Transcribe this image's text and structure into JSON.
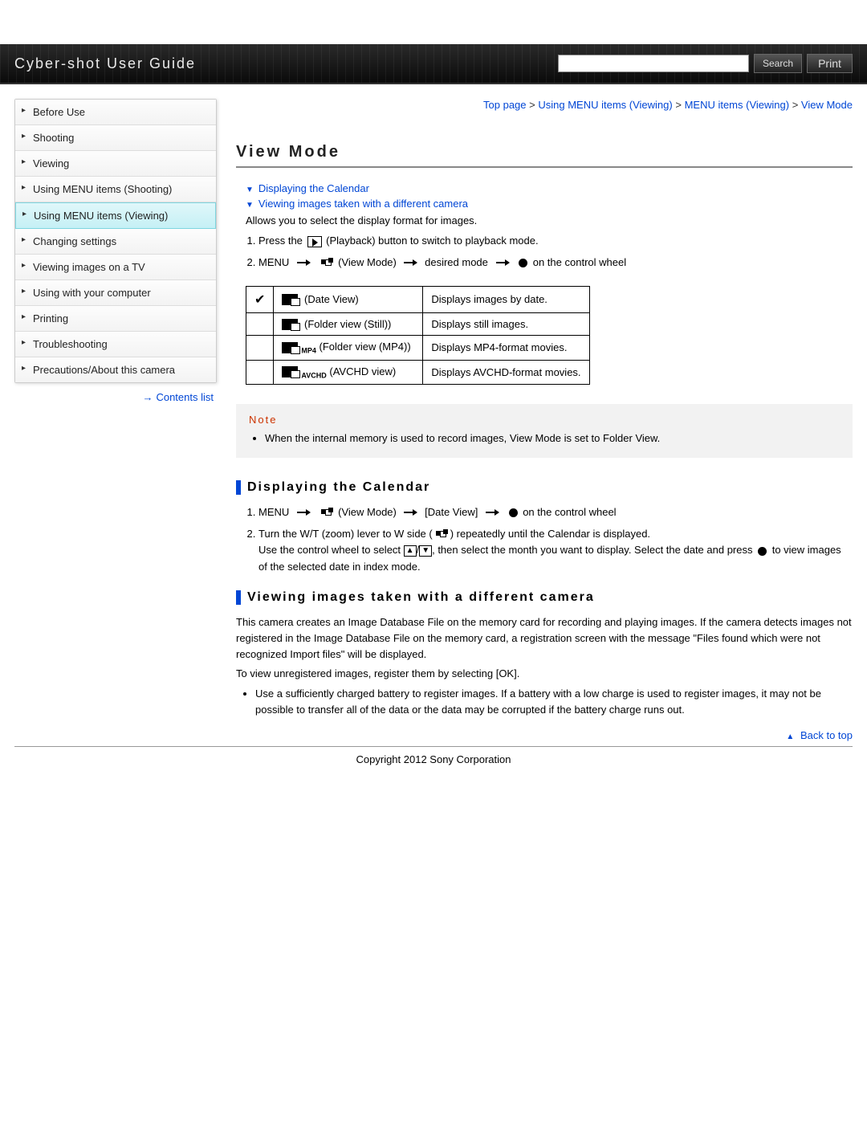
{
  "header": {
    "title": "Cyber-shot User Guide",
    "search_button": "Search",
    "print_button": "Print",
    "search_placeholder": ""
  },
  "colors": {
    "link": "#0046d5",
    "note_title": "#cc3300",
    "section_accent": "#0046d5",
    "active_bg_top": "#e0f7fa",
    "active_bg_bottom": "#c5f0f5"
  },
  "sidebar": {
    "items": [
      {
        "label": "Before Use"
      },
      {
        "label": "Shooting"
      },
      {
        "label": "Viewing"
      },
      {
        "label": "Using MENU items (Shooting)"
      },
      {
        "label": "Using MENU items (Viewing)",
        "active": true
      },
      {
        "label": "Changing settings"
      },
      {
        "label": "Viewing images on a TV"
      },
      {
        "label": "Using with your computer"
      },
      {
        "label": "Printing"
      },
      {
        "label": "Troubleshooting"
      },
      {
        "label": "Precautions/About this camera"
      }
    ],
    "contents_list": "Contents list"
  },
  "breadcrumb": {
    "items": [
      "Top page",
      "Using MENU items (Viewing)",
      "MENU items (Viewing)",
      "View Mode"
    ],
    "sep": " > "
  },
  "page": {
    "title": "View Mode",
    "anchors": [
      "Displaying the Calendar",
      "Viewing images taken with a different camera"
    ],
    "intro": "Allows you to select the display format for images.",
    "steps_intro": {
      "s1_a": "Press the ",
      "s1_b": " (Playback) button to switch to playback mode.",
      "s2_a": "MENU ",
      "s2_b": " (View Mode) ",
      "s2_c": " desired mode ",
      "s2_d": " on the control wheel"
    },
    "table": {
      "rows": [
        {
          "check": "✔",
          "label": " (Date View)",
          "desc": "Displays images by date."
        },
        {
          "check": "",
          "label": " (Folder view (Still))",
          "desc": "Displays still images."
        },
        {
          "check": "",
          "sub": "MP4",
          "label": " (Folder view (MP4))",
          "desc": "Displays MP4-format movies."
        },
        {
          "check": "",
          "sub": "AVCHD",
          "label": " (AVCHD view)",
          "desc": "Displays AVCHD-format movies."
        }
      ]
    },
    "note": {
      "title": "Note",
      "items": [
        "When the internal memory is used to record images, View Mode is set to Folder View."
      ]
    },
    "section_calendar": {
      "title": "Displaying the Calendar",
      "s1_a": "MENU ",
      "s1_b": " (View Mode) ",
      "s1_c": " [Date View] ",
      "s1_d": " on the control wheel",
      "s2_a": "Turn the W/T (zoom) lever to W side (",
      "s2_b": ") repeatedly until the Calendar is displayed.",
      "s2_c": "Use the control wheel to select ",
      "s2_d": ", then select the month you want to display. Select the date and press ",
      "s2_e": " to view images of the selected date in index mode."
    },
    "section_diffcam": {
      "title": "Viewing images taken with a different camera",
      "p1": "This camera creates an Image Database File on the memory card for recording and playing images. If the camera detects images not registered in the Image Database File on the memory card, a registration screen with the message \"Files found which were not recognized Import files\" will be displayed.",
      "p2": "To view unregistered images, register them by selecting [OK].",
      "bullets": [
        "Use a sufficiently charged battery to register images. If a battery with a low charge is used to register images, it may not be possible to transfer all of the data or the data may be corrupted if the battery charge runs out."
      ]
    },
    "back_to_top": "Back to top"
  },
  "footer": {
    "copyright": "Copyright 2012 Sony Corporation"
  }
}
